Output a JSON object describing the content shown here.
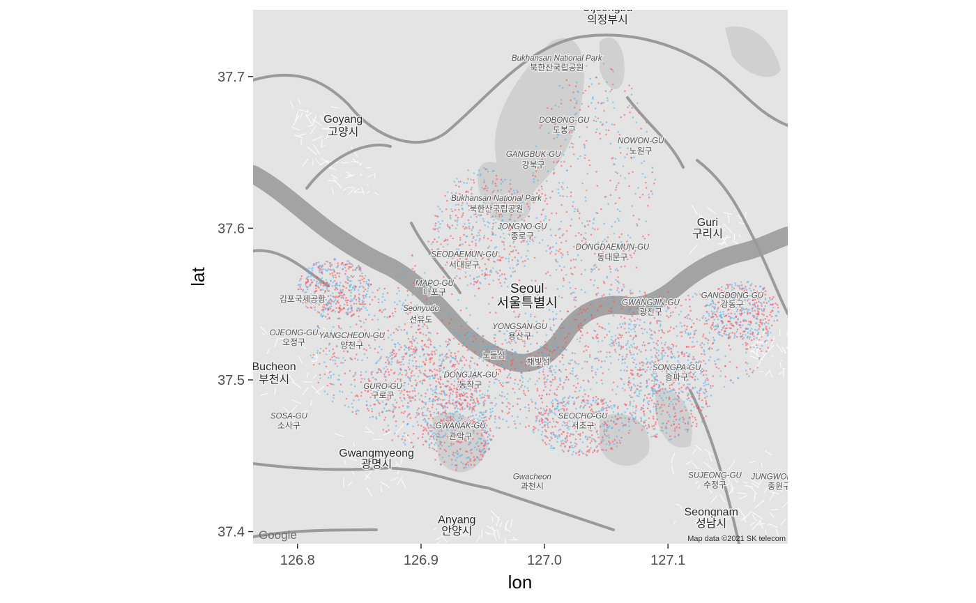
{
  "chart_data": {
    "type": "scatter",
    "basemap": "grayscale road map of Seoul",
    "xlabel": "lon",
    "ylabel": "lat",
    "xlim": [
      126.764,
      127.197
    ],
    "ylim": [
      37.392,
      37.744
    ],
    "x_ticks": [
      126.8,
      126.9,
      127.0,
      127.1
    ],
    "x_tick_labels": [
      "126.8",
      "126.9",
      "127.0",
      "127.1"
    ],
    "y_ticks": [
      37.4,
      37.5,
      37.6,
      37.7
    ],
    "y_tick_labels": [
      "37.4",
      "37.5",
      "37.6",
      "37.7"
    ],
    "series": [
      {
        "color": "#ff4d5a"
      },
      {
        "color": "#4fb4ee"
      }
    ],
    "point_extent": {
      "lon": [
        126.81,
        127.18
      ],
      "lat": [
        37.44,
        37.7
      ]
    },
    "labels": [
      {
        "text": "Uijeongbu",
        "lon": 127.051,
        "lat": 37.743,
        "style": "big"
      },
      {
        "text": "의정부시",
        "lon": 127.051,
        "lat": 37.735,
        "style": "big"
      },
      {
        "text": "Bukhansan National Park",
        "lon": 127.01,
        "lat": 37.7105,
        "style": "small"
      },
      {
        "text": "북한산국립공원",
        "lon": 127.01,
        "lat": 37.704,
        "style": "ko"
      },
      {
        "text": "Goyang",
        "lon": 126.837,
        "lat": 37.6695,
        "style": "big"
      },
      {
        "text": "고양시",
        "lon": 126.837,
        "lat": 37.661,
        "style": "big"
      },
      {
        "text": "DOBONG-GU",
        "lon": 127.016,
        "lat": 37.6695,
        "style": "small"
      },
      {
        "text": "도봉구",
        "lon": 127.016,
        "lat": 37.663,
        "style": "ko"
      },
      {
        "text": "NOWON-GU",
        "lon": 127.078,
        "lat": 37.656,
        "style": "small"
      },
      {
        "text": "노원구",
        "lon": 127.078,
        "lat": 37.649,
        "style": "ko"
      },
      {
        "text": "GANGBUK-GU",
        "lon": 126.991,
        "lat": 37.647,
        "style": "small"
      },
      {
        "text": "강북구",
        "lon": 126.991,
        "lat": 37.64,
        "style": "ko"
      },
      {
        "text": "Bukhansan National Park",
        "lon": 126.961,
        "lat": 37.618,
        "style": "small"
      },
      {
        "text": "북한산국립공원",
        "lon": 126.961,
        "lat": 37.611,
        "style": "ko"
      },
      {
        "text": "JONGNO-GU",
        "lon": 126.982,
        "lat": 37.5995,
        "style": "small"
      },
      {
        "text": "종로구",
        "lon": 126.982,
        "lat": 37.593,
        "style": "ko"
      },
      {
        "text": "Guri",
        "lon": 127.132,
        "lat": 37.6015,
        "style": "big"
      },
      {
        "text": "구리시",
        "lon": 127.132,
        "lat": 37.594,
        "style": "big"
      },
      {
        "text": "DONGDAEMUN-GU",
        "lon": 127.055,
        "lat": 37.586,
        "style": "small"
      },
      {
        "text": "동대문구",
        "lon": 127.055,
        "lat": 37.579,
        "style": "ko"
      },
      {
        "text": "SEODAEMUN-GU",
        "lon": 126.935,
        "lat": 37.581,
        "style": "small"
      },
      {
        "text": "서대문구",
        "lon": 126.935,
        "lat": 37.574,
        "style": "ko"
      },
      {
        "text": "MAPO-GU",
        "lon": 126.911,
        "lat": 37.562,
        "style": "small"
      },
      {
        "text": "마포구",
        "lon": 126.911,
        "lat": 37.556,
        "style": "ko"
      },
      {
        "text": "Seoul",
        "lon": 126.986,
        "lat": 37.5575,
        "style": "seoul"
      },
      {
        "text": "서울특별시",
        "lon": 126.986,
        "lat": 37.548,
        "style": "seoul"
      },
      {
        "text": "김포국제공항",
        "lon": 126.804,
        "lat": 37.5515,
        "style": "ko"
      },
      {
        "text": "Seonyudo",
        "lon": 126.9,
        "lat": 37.5455,
        "style": "small"
      },
      {
        "text": "선유도",
        "lon": 126.9,
        "lat": 37.538,
        "style": "ko"
      },
      {
        "text": "GWANGJIN-GU",
        "lon": 127.086,
        "lat": 37.5495,
        "style": "small"
      },
      {
        "text": "광진구",
        "lon": 127.086,
        "lat": 37.543,
        "style": "ko"
      },
      {
        "text": "GANGDONG-GU",
        "lon": 127.152,
        "lat": 37.554,
        "style": "small"
      },
      {
        "text": "강동구",
        "lon": 127.152,
        "lat": 37.548,
        "style": "ko"
      },
      {
        "text": "YONGSAN-GU",
        "lon": 126.98,
        "lat": 37.5335,
        "style": "small"
      },
      {
        "text": "용산구",
        "lon": 126.98,
        "lat": 37.527,
        "style": "ko"
      },
      {
        "text": "OJEONG-GU",
        "lon": 126.797,
        "lat": 37.5295,
        "style": "small"
      },
      {
        "text": "오정구",
        "lon": 126.797,
        "lat": 37.523,
        "style": "ko"
      },
      {
        "text": "YANGCHEON-GU",
        "lon": 126.844,
        "lat": 37.5275,
        "style": "small"
      },
      {
        "text": "양천구",
        "lon": 126.844,
        "lat": 37.521,
        "style": "ko"
      },
      {
        "text": "노들섬",
        "lon": 126.959,
        "lat": 37.5145,
        "style": "ko"
      },
      {
        "text": "채빛섬",
        "lon": 126.995,
        "lat": 37.51,
        "style": "ko"
      },
      {
        "text": "Bucheon",
        "lon": 126.781,
        "lat": 37.5065,
        "style": "big"
      },
      {
        "text": "부천시",
        "lon": 126.781,
        "lat": 37.498,
        "style": "big"
      },
      {
        "text": "SONGPA-GU",
        "lon": 127.107,
        "lat": 37.5065,
        "style": "small"
      },
      {
        "text": "송파구",
        "lon": 127.107,
        "lat": 37.5,
        "style": "ko"
      },
      {
        "text": "DONGJAK-GU",
        "lon": 126.94,
        "lat": 37.5015,
        "style": "small"
      },
      {
        "text": "동작구",
        "lon": 126.94,
        "lat": 37.495,
        "style": "ko"
      },
      {
        "text": "GURO-GU",
        "lon": 126.869,
        "lat": 37.494,
        "style": "small"
      },
      {
        "text": "구로구",
        "lon": 126.869,
        "lat": 37.488,
        "style": "ko"
      },
      {
        "text": "SOSA-GU",
        "lon": 126.793,
        "lat": 37.4745,
        "style": "small"
      },
      {
        "text": "소사구",
        "lon": 126.793,
        "lat": 37.468,
        "style": "ko"
      },
      {
        "text": "SEOCHO-GU",
        "lon": 127.031,
        "lat": 37.4745,
        "style": "small"
      },
      {
        "text": "서초구",
        "lon": 127.031,
        "lat": 37.468,
        "style": "ko"
      },
      {
        "text": "GWANAK-GU",
        "lon": 126.932,
        "lat": 37.468,
        "style": "small"
      },
      {
        "text": "관악구",
        "lon": 126.932,
        "lat": 37.461,
        "style": "ko"
      },
      {
        "text": "Gwangmyeong",
        "lon": 126.864,
        "lat": 37.4495,
        "style": "big"
      },
      {
        "text": "광명시",
        "lon": 126.864,
        "lat": 37.442,
        "style": "big"
      },
      {
        "text": "SUJEONG-GU",
        "lon": 127.138,
        "lat": 37.4355,
        "style": "small"
      },
      {
        "text": "수정구",
        "lon": 127.138,
        "lat": 37.429,
        "style": "ko"
      },
      {
        "text": "JUNGWON-GU",
        "lon": 127.19,
        "lat": 37.4345,
        "style": "small"
      },
      {
        "text": "중원구",
        "lon": 127.19,
        "lat": 37.428,
        "style": "ko"
      },
      {
        "text": "Gwacheon",
        "lon": 126.99,
        "lat": 37.4345,
        "style": "small"
      },
      {
        "text": "과천시",
        "lon": 126.99,
        "lat": 37.428,
        "style": "ko"
      },
      {
        "text": "Seongnam",
        "lon": 127.135,
        "lat": 37.4105,
        "style": "big"
      },
      {
        "text": "성남시",
        "lon": 127.135,
        "lat": 37.403,
        "style": "big"
      },
      {
        "text": "Anyang",
        "lon": 126.929,
        "lat": 37.4055,
        "style": "big"
      },
      {
        "text": "안양시",
        "lon": 126.929,
        "lat": 37.398,
        "style": "big"
      }
    ],
    "logo": "Google",
    "attribution": "Map data ©2021 SK telecom"
  }
}
